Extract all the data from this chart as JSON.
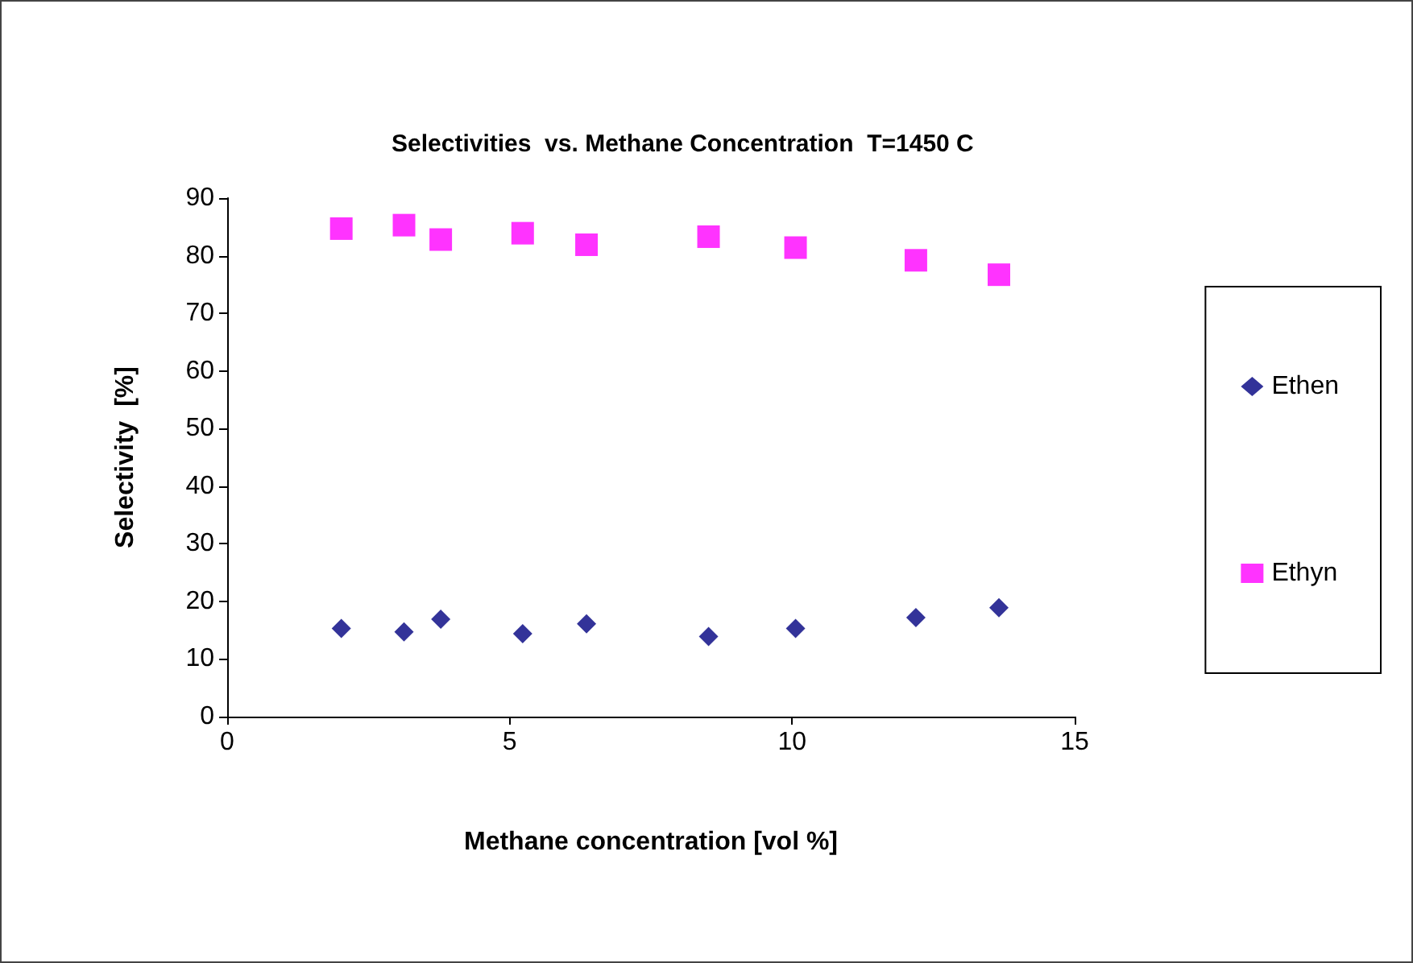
{
  "chart_data": {
    "type": "scatter",
    "title": "Selectivities  vs. Methane Concentration  T=1450 C",
    "xlabel": "Methane concentration [vol %]",
    "ylabel": "Selectivity  [%]",
    "x": [
      2.02,
      3.13,
      3.78,
      5.23,
      6.36,
      8.52,
      10.06,
      12.19,
      13.66
    ],
    "series": [
      {
        "name": "Ethen",
        "color": "#000080",
        "marker": "diamond",
        "values": [
          15.3,
          14.7,
          16.9,
          14.4,
          16.1,
          13.9,
          15.3,
          17.2,
          18.9
        ]
      },
      {
        "name": "Ethyn",
        "color": "#ff00ff",
        "marker": "square",
        "values": [
          84.7,
          85.3,
          82.8,
          83.9,
          81.9,
          83.3,
          81.4,
          79.2,
          76.7
        ]
      }
    ],
    "xlim": [
      0,
      15
    ],
    "xticks": [
      0,
      5,
      10,
      15
    ],
    "ylim": [
      0,
      90
    ],
    "yticks": [
      0,
      10,
      20,
      30,
      40,
      50,
      60,
      70,
      80,
      90
    ],
    "grid": false,
    "legend": "right"
  }
}
